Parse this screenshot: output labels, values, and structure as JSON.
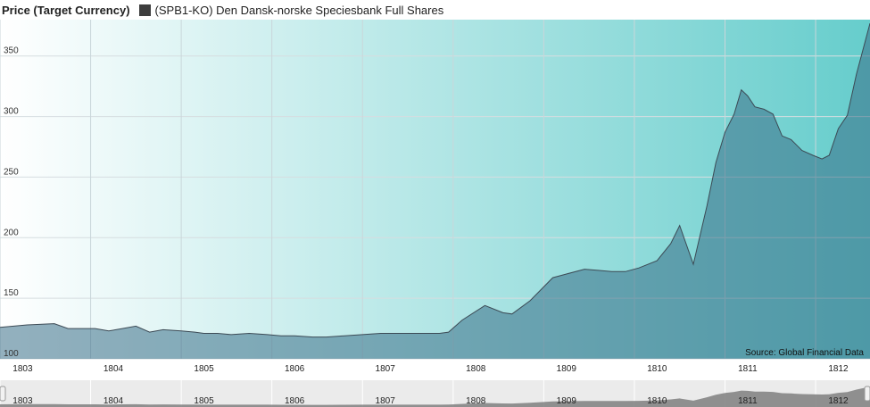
{
  "legend": {
    "title": "Price (Target Currency)",
    "series_label": "(SPB1-KO) Den Dansk-norske Speciesbank Full Shares",
    "swatch_color": "#3d3d3d"
  },
  "source": "Source: Global Financial Data",
  "colors": {
    "gradient_left": "#ffffff",
    "gradient_right": "#66cdcc",
    "area_fill": "#3a6f88",
    "area_line": "#3c4a55",
    "navigator_bg": "#ebebeb",
    "navigator_area": "#7f7f7f"
  },
  "chart_data": {
    "type": "area",
    "title": "",
    "xlabel": "",
    "ylabel": "Price (Target Currency)",
    "xlim": [
      1802.75,
      1812.35
    ],
    "ylim": [
      100,
      380
    ],
    "yticks": [
      100,
      150,
      200,
      250,
      300,
      350
    ],
    "xticks": [
      "1803",
      "1804",
      "1805",
      "1806",
      "1807",
      "1808",
      "1809",
      "1810",
      "1811",
      "1812"
    ],
    "grid": true,
    "legend_position": "top-left",
    "series": [
      {
        "name": "(SPB1-KO) Den Dansk-norske Speciesbank Full Shares",
        "points": [
          [
            1802.75,
            126
          ],
          [
            1803.05,
            128
          ],
          [
            1803.35,
            129
          ],
          [
            1803.5,
            125
          ],
          [
            1803.8,
            125
          ],
          [
            1803.95,
            123
          ],
          [
            1804.1,
            125
          ],
          [
            1804.25,
            127
          ],
          [
            1804.4,
            122
          ],
          [
            1804.55,
            124
          ],
          [
            1804.75,
            123
          ],
          [
            1804.9,
            122
          ],
          [
            1805.0,
            121
          ],
          [
            1805.15,
            121
          ],
          [
            1805.3,
            120
          ],
          [
            1805.5,
            121
          ],
          [
            1805.7,
            120
          ],
          [
            1805.85,
            119
          ],
          [
            1806.0,
            119
          ],
          [
            1806.2,
            118
          ],
          [
            1806.35,
            118
          ],
          [
            1806.55,
            119
          ],
          [
            1806.75,
            120
          ],
          [
            1806.95,
            121
          ],
          [
            1807.2,
            121
          ],
          [
            1807.4,
            121
          ],
          [
            1807.6,
            121
          ],
          [
            1807.7,
            122
          ],
          [
            1807.85,
            132
          ],
          [
            1808.1,
            144
          ],
          [
            1808.3,
            138
          ],
          [
            1808.4,
            137
          ],
          [
            1808.6,
            148
          ],
          [
            1808.85,
            167
          ],
          [
            1809.0,
            170
          ],
          [
            1809.2,
            174
          ],
          [
            1809.35,
            173
          ],
          [
            1809.5,
            172
          ],
          [
            1809.65,
            172
          ],
          [
            1809.8,
            175
          ],
          [
            1810.0,
            181
          ],
          [
            1810.15,
            195
          ],
          [
            1810.25,
            210
          ],
          [
            1810.4,
            178
          ],
          [
            1810.55,
            226
          ],
          [
            1810.65,
            262
          ],
          [
            1810.75,
            287
          ],
          [
            1810.85,
            302
          ],
          [
            1810.93,
            322
          ],
          [
            1811.0,
            317
          ],
          [
            1811.08,
            308
          ],
          [
            1811.18,
            306
          ],
          [
            1811.28,
            302
          ],
          [
            1811.38,
            284
          ],
          [
            1811.48,
            281
          ],
          [
            1811.6,
            272
          ],
          [
            1811.72,
            268
          ],
          [
            1811.82,
            265
          ],
          [
            1811.9,
            268
          ],
          [
            1812.0,
            290
          ],
          [
            1812.1,
            301
          ],
          [
            1812.2,
            335
          ],
          [
            1812.35,
            377
          ]
        ]
      }
    ]
  }
}
